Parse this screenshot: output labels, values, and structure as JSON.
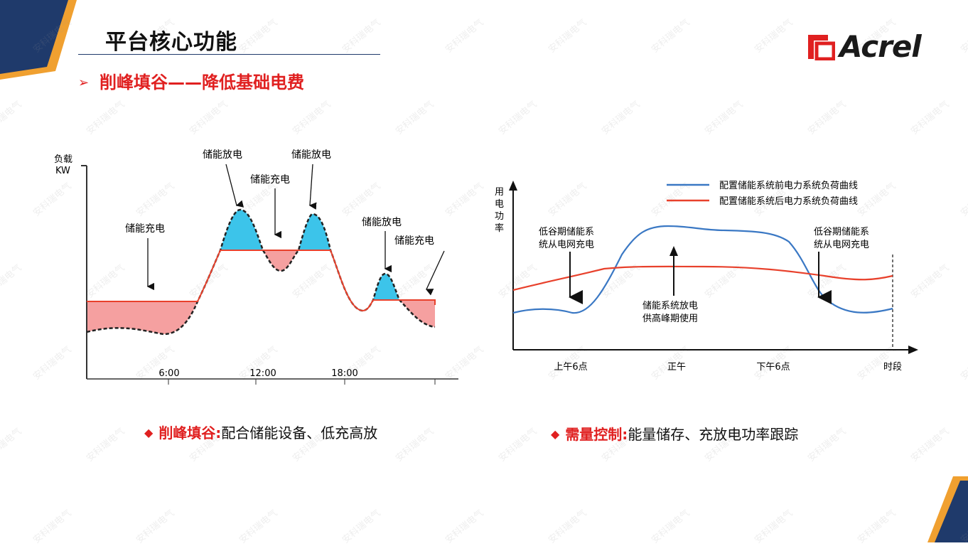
{
  "header": {
    "title": "平台核心功能",
    "subtitle": "削峰填谷——降低基础电费",
    "logo_text": "Acrel"
  },
  "left_chart": {
    "y_axis_label_line1": "负载",
    "y_axis_label_line2": "KW",
    "x_ticks": [
      "6:00",
      "12:00",
      "18:00"
    ],
    "annotations": {
      "charge_1": "储能充电",
      "discharge_1": "储能放电",
      "charge_2": "储能充电",
      "discharge_2": "储能放电",
      "discharge_3": "储能放电",
      "charge_3": "储能充电"
    }
  },
  "right_chart": {
    "y_axis_label": [
      "用",
      "电",
      "功",
      "率"
    ],
    "legend": [
      {
        "label": "配置储能系统前电力系统负荷曲线",
        "color": "#3a78c4"
      },
      {
        "label": "配置储能系统后电力系统负荷曲线",
        "color": "#e8412c"
      }
    ],
    "x_labels": [
      "上午6点",
      "正午",
      "下午6点",
      "时段"
    ],
    "annotations": {
      "left_line1": "低谷期储能系",
      "left_line2": "统从电网充电",
      "center_line1": "储能系统放电",
      "center_line2": "供高峰期使用",
      "right_line1": "低谷期储能系",
      "right_line2": "统从电网充电"
    }
  },
  "captions": {
    "left_key": "削峰填谷:",
    "left_text": "配合储能设备、低充高放",
    "right_key": "需量控制:",
    "right_text": "能量储存、充放电功率跟踪"
  },
  "colors": {
    "accent_red": "#e02020",
    "brand_navy": "#1f3a6b",
    "brand_orange": "#f0a030",
    "discharge_fill": "#3cc4ea",
    "charge_fill": "#f5a0a0"
  },
  "watermark_text": "安科瑞电气"
}
